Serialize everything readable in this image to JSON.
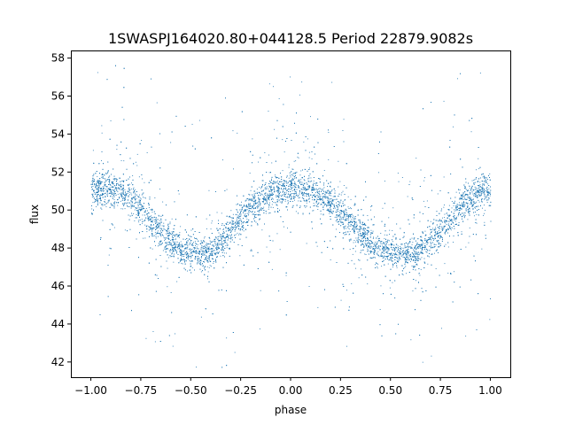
{
  "chart_data": {
    "type": "scatter",
    "title": "1SWASPJ164020.80+044128.5 Period 22879.9082s",
    "xlabel": "phase",
    "ylabel": "flux",
    "xlim": [
      -1.1,
      1.1
    ],
    "ylim": [
      41.2,
      58.4
    ],
    "grid": false,
    "legend": "none",
    "xticks": [
      -1.0,
      -0.75,
      -0.5,
      -0.25,
      0.0,
      0.25,
      0.5,
      0.75,
      1.0
    ],
    "xtick_labels": [
      "−1.00",
      "−0.75",
      "−0.50",
      "−0.25",
      "0.00",
      "0.25",
      "0.50",
      "0.75",
      "1.00"
    ],
    "yticks": [
      42,
      44,
      46,
      48,
      50,
      52,
      54,
      56,
      58
    ],
    "ytick_labels": [
      "42",
      "44",
      "46",
      "48",
      "50",
      "52",
      "54",
      "56",
      "58"
    ],
    "point_color": "#1f77b4",
    "series": [
      {
        "x": [
          -1.0,
          -0.95,
          -0.9,
          -0.85,
          -0.8,
          -0.75,
          -0.7,
          -0.65,
          -0.6,
          -0.55,
          -0.5,
          -0.45,
          -0.4,
          -0.35,
          -0.3,
          -0.25,
          -0.2,
          -0.15,
          -0.1,
          -0.05,
          0.0,
          0.05,
          0.1,
          0.15,
          0.2,
          0.25,
          0.3,
          0.35,
          0.4,
          0.45,
          0.5,
          0.55,
          0.6,
          0.65,
          0.7,
          0.75,
          0.8,
          0.85,
          0.9,
          0.95,
          1.0
        ],
        "values": [
          51.0,
          51.2,
          51.2,
          51.0,
          50.6,
          50.1,
          49.5,
          48.9,
          48.3,
          47.9,
          47.8,
          47.7,
          47.8,
          48.4,
          49.0,
          49.6,
          50.2,
          50.6,
          50.9,
          51.0,
          51.1,
          51.2,
          51.0,
          50.7,
          50.4,
          50.0,
          49.4,
          48.8,
          48.3,
          47.9,
          47.8,
          47.7,
          47.7,
          47.9,
          48.4,
          49.0,
          49.6,
          50.2,
          50.6,
          50.9,
          51.0
        ]
      }
    ]
  }
}
